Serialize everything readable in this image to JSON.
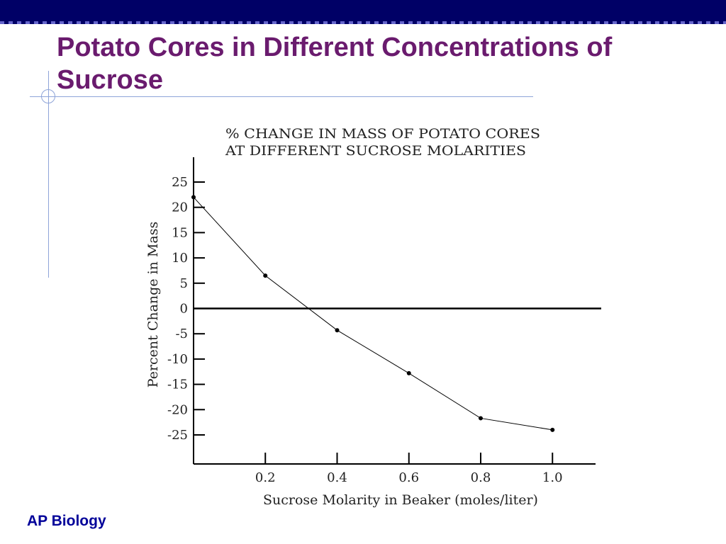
{
  "slide": {
    "title_line1": "Potato Cores in Different Concentrations of",
    "title_line2": "Sucrose",
    "footer": "AP Biology",
    "colors": {
      "header_bar": "#000066",
      "title": "#6a1b6e",
      "footer": "#000099",
      "decor_lines": "#8ea4d8"
    }
  },
  "chart_data": {
    "type": "line",
    "title_lines": [
      "% CHANGE IN MASS OF POTATO CORES",
      "AT DIFFERENT SUCROSE MOLARITIES"
    ],
    "xlabel": "Sucrose Molarity in Beaker (moles/liter)",
    "ylabel": "Percent Change in Mass",
    "x": [
      0.0,
      0.2,
      0.4,
      0.6,
      0.8,
      1.0
    ],
    "y": [
      22,
      6.5,
      -4.3,
      -12.8,
      -21.7,
      -24
    ],
    "xlim": [
      0.0,
      1.12
    ],
    "ylim": [
      -30,
      30
    ],
    "x_ticks": [
      0.2,
      0.4,
      0.6,
      0.8,
      1.0
    ],
    "x_tick_labels": [
      "0.2",
      "0.4",
      "0.6",
      "0.8",
      "1.0"
    ],
    "y_ticks": [
      25,
      20,
      15,
      10,
      5,
      0,
      -5,
      -10,
      -15,
      -20,
      -25
    ],
    "y_tick_labels": [
      "25",
      "20",
      "15",
      "10",
      "5",
      "0",
      "-5",
      "-10",
      "-15",
      "-20",
      "-25"
    ],
    "zero_line": true,
    "grid": false,
    "legend": "none"
  }
}
